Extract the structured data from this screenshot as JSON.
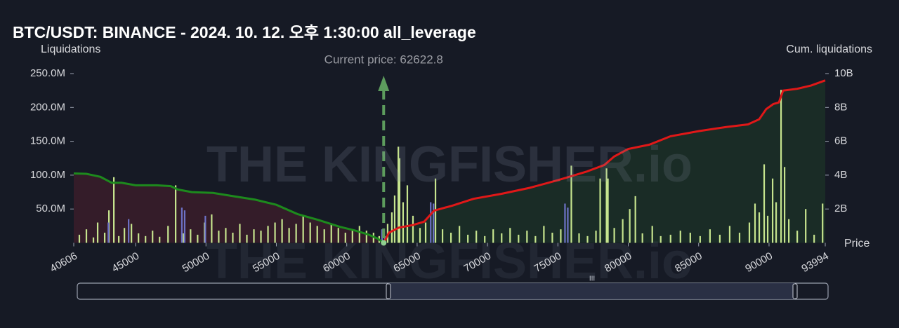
{
  "chart_data": {
    "type": "bar",
    "title": "BTC/USDT: BINANCE - 2024. 10. 12. 오후 1:30:00 all_leverage",
    "y_label": "Liquidations",
    "y2_label": "Cum. liquidations",
    "x_label": "Price",
    "watermark": "THE KINGFISHER.io",
    "annotation": {
      "text": "Current price: 62622.8",
      "x": 62622.8,
      "color": "#5d9c5d"
    },
    "xlim": [
      40606,
      93994
    ],
    "xticks": [
      40606,
      45000,
      50000,
      55000,
      60000,
      65000,
      70000,
      75000,
      80000,
      85000,
      90000,
      93994
    ],
    "ylim": [
      0,
      250000000
    ],
    "yticks": [
      {
        "value": 50000000,
        "label": "50.0M"
      },
      {
        "value": 100000000,
        "label": "100.0M"
      },
      {
        "value": 150000000,
        "label": "150.0M"
      },
      {
        "value": 200000000,
        "label": "200.0M"
      },
      {
        "value": 250000000,
        "label": "250.0M"
      }
    ],
    "y2lim": [
      0,
      10000000000
    ],
    "y2ticks": [
      {
        "value": 2000000000,
        "label": "2B"
      },
      {
        "value": 4000000000,
        "label": "4B"
      },
      {
        "value": 6000000000,
        "label": "6B"
      },
      {
        "value": 8000000000,
        "label": "8B"
      },
      {
        "value": 10000000000,
        "label": "10B"
      }
    ],
    "series": [
      {
        "color": "#c6e48e",
        "x": [
          41000,
          41500,
          42000,
          42300,
          42800,
          43100,
          43450,
          43800,
          44200,
          44700,
          45200,
          45700,
          46200,
          46700,
          47300,
          47840,
          48400,
          48900,
          49400,
          49900,
          50400,
          50900,
          51400,
          51900,
          52400,
          52900,
          53400,
          53900,
          54400,
          54900,
          55400,
          55900,
          56400,
          56900,
          57400,
          57900,
          58400,
          58900,
          59400,
          59900,
          60400,
          60900,
          61400,
          61900,
          62300,
          62900,
          63200,
          63400,
          63660,
          63750,
          64000,
          64300,
          64700,
          65200,
          65600,
          66300,
          66800,
          67400,
          68000,
          68600,
          69200,
          69800,
          70400,
          71000,
          71600,
          72200,
          72800,
          73400,
          74000,
          74600,
          75200,
          75950,
          76500,
          77100,
          77700,
          78000,
          78450,
          78550,
          79000,
          79600,
          80100,
          80500,
          81000,
          81700,
          82300,
          83000,
          83700,
          84400,
          85100,
          85800,
          86500,
          87200,
          87900,
          88600,
          89000,
          89300,
          89650,
          89900,
          90250,
          90500,
          90850,
          91100,
          91400,
          92000,
          92600,
          93200,
          93800
        ],
        "values": [
          12000000,
          20000000,
          8000000,
          30000000,
          15000000,
          48000000,
          97000000,
          10000000,
          22000000,
          28000000,
          14000000,
          10000000,
          18000000,
          9000000,
          25000000,
          85000000,
          14000000,
          20000000,
          12000000,
          30000000,
          42000000,
          18000000,
          22000000,
          15000000,
          28000000,
          12000000,
          20000000,
          18000000,
          25000000,
          30000000,
          35000000,
          22000000,
          28000000,
          40000000,
          30000000,
          25000000,
          20000000,
          28000000,
          22000000,
          15000000,
          20000000,
          25000000,
          18000000,
          15000000,
          10000000,
          28000000,
          45000000,
          70000000,
          142000000,
          125000000,
          60000000,
          85000000,
          40000000,
          22000000,
          30000000,
          95000000,
          20000000,
          15000000,
          25000000,
          12000000,
          18000000,
          10000000,
          20000000,
          14000000,
          22000000,
          12000000,
          18000000,
          10000000,
          25000000,
          15000000,
          20000000,
          114000000,
          14000000,
          10000000,
          18000000,
          95000000,
          110000000,
          95000000,
          22000000,
          35000000,
          50000000,
          69000000,
          14000000,
          25000000,
          10000000,
          12000000,
          18000000,
          15000000,
          10000000,
          20000000,
          12000000,
          25000000,
          15000000,
          30000000,
          58000000,
          45000000,
          116000000,
          40000000,
          95000000,
          60000000,
          226000000,
          112000000,
          35000000,
          18000000,
          50000000,
          12000000,
          58000000
        ]
      },
      {
        "color": "#6d72c6",
        "x": [
          43060,
          44500,
          48280,
          48480,
          49950,
          62500,
          62700,
          65960,
          66160,
          75500,
          75700
        ],
        "values": [
          30000000,
          35000000,
          52000000,
          48000000,
          40000000,
          20000000,
          10000000,
          60000000,
          58000000,
          58000000,
          52000000
        ]
      }
    ],
    "lines": [
      {
        "axis": "y2",
        "color": "#1d8a1d",
        "fill": "#3a1d2a",
        "x": [
          40606,
          41500,
          42500,
          43300,
          44000,
          45000,
          46500,
          47500,
          48000,
          49000,
          50500,
          52000,
          53500,
          55000,
          56500,
          58000,
          59500,
          60500,
          61500,
          62200,
          62622.8
        ],
        "values": [
          4100000000,
          4080000000,
          3900000000,
          3550000000,
          3550000000,
          3400000000,
          3400000000,
          3350000000,
          3150000000,
          3000000000,
          2950000000,
          2750000000,
          2550000000,
          2250000000,
          1700000000,
          1350000000,
          950000000,
          750000000,
          500000000,
          250000000,
          0
        ]
      },
      {
        "axis": "y2",
        "color": "#e01818",
        "fill": "#1b3027",
        "x": [
          62622.8,
          63000,
          63700,
          64700,
          65500,
          66200,
          67500,
          69000,
          71000,
          73000,
          75000,
          76000,
          77000,
          78300,
          79000,
          80000,
          81500,
          83000,
          85000,
          87000,
          88500,
          89300,
          89800,
          90300,
          90700,
          91000,
          92000,
          92500,
          93000,
          93994
        ],
        "values": [
          0,
          600000000,
          900000000,
          1050000000,
          1250000000,
          1900000000,
          2200000000,
          2600000000,
          2900000000,
          3250000000,
          3700000000,
          3950000000,
          4200000000,
          4600000000,
          5100000000,
          5550000000,
          5800000000,
          6300000000,
          6600000000,
          6850000000,
          7000000000,
          7300000000,
          7900000000,
          8200000000,
          8300000000,
          9000000000,
          9100000000,
          9200000000,
          9300000000,
          9600000000
        ]
      }
    ]
  }
}
